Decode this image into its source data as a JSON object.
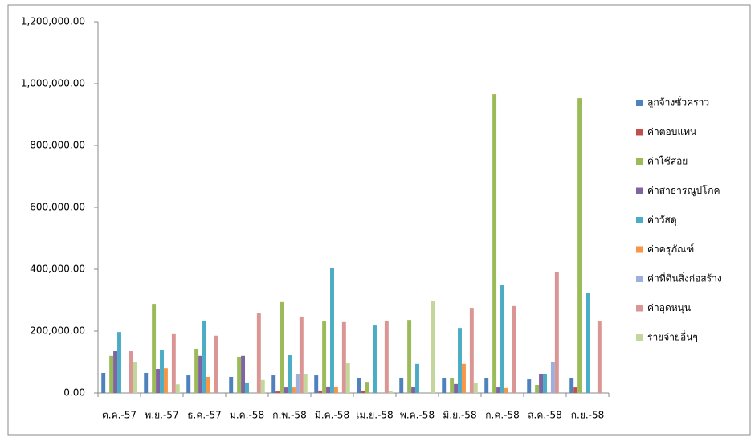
{
  "chart_data": {
    "type": "bar",
    "categories": [
      "ต.ค.-57",
      "พ.ย.-57",
      "ธ.ค.-57",
      "ม.ค.-58",
      "ก.พ.-58",
      "มี.ค.-58",
      "เม.ย.-58",
      "พ.ค.-58",
      "มิ.ย.-58",
      "ก.ค.-58",
      "ส.ค.-58",
      "ก.ย.-58"
    ],
    "series": [
      {
        "name": "ลูกจ้างชั่วคราว",
        "color": "#4f81bd",
        "values": [
          65000,
          65000,
          57000,
          52000,
          57000,
          57000,
          47000,
          47000,
          47000,
          47000,
          44000,
          47000
        ]
      },
      {
        "name": "ค่าตอบแทน",
        "color": "#c0504d",
        "values": [
          0,
          0,
          0,
          0,
          5000,
          8000,
          8000,
          0,
          0,
          0,
          0,
          18000
        ]
      },
      {
        "name": "ค่าใช้สอย",
        "color": "#9bbb59",
        "values": [
          120000,
          288000,
          143000,
          117000,
          294000,
          231000,
          36000,
          236000,
          47000,
          966000,
          26000,
          953000
        ]
      },
      {
        "name": "ค่าสาธารณูปโภค",
        "color": "#8064a2",
        "values": [
          135000,
          78000,
          120000,
          120000,
          18000,
          21000,
          0,
          18000,
          29000,
          18000,
          62000,
          0
        ]
      },
      {
        "name": "ค่าวัสดุ",
        "color": "#4bacc6",
        "values": [
          197000,
          138000,
          234000,
          34000,
          122000,
          405000,
          218000,
          94000,
          210000,
          348000,
          60000,
          322000
        ]
      },
      {
        "name": "ค่าครุภัณฑ์",
        "color": "#f79646",
        "values": [
          0,
          80000,
          52000,
          0,
          18000,
          21000,
          0,
          0,
          94000,
          16000,
          0,
          0
        ]
      },
      {
        "name": "ค่าที่ดินสิ่งก่อสร้าง",
        "color": "#9bb0dd",
        "values": [
          0,
          0,
          0,
          0,
          62000,
          0,
          0,
          0,
          0,
          0,
          101000,
          0
        ]
      },
      {
        "name": "ค่าอุดหนุน",
        "color": "#d99694",
        "values": [
          135000,
          190000,
          185000,
          257000,
          247000,
          229000,
          234000,
          0,
          275000,
          281000,
          392000,
          231000
        ]
      },
      {
        "name": "รายจ่ายอื่นๆ",
        "color": "#c3d69b",
        "values": [
          101000,
          28000,
          0,
          42000,
          60000,
          96000,
          5000,
          296000,
          34000,
          0,
          0,
          0
        ]
      }
    ],
    "ylim": [
      0,
      1200000
    ],
    "yticks": [
      {
        "value": 0,
        "label": "0.00"
      },
      {
        "value": 200000,
        "label": "200,000.00"
      },
      {
        "value": 400000,
        "label": "400,000.00"
      },
      {
        "value": 600000,
        "label": "600,000.00"
      },
      {
        "value": 800000,
        "label": "800,000.00"
      },
      {
        "value": 1000000,
        "label": "1,000,000.00"
      },
      {
        "value": 1200000,
        "label": "1,200,000.00"
      }
    ],
    "legend": "right"
  }
}
